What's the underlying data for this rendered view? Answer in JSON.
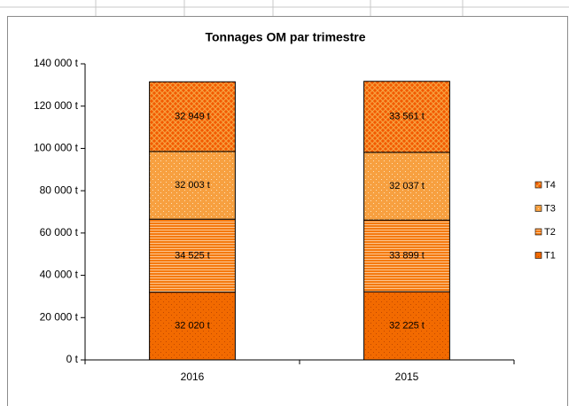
{
  "chart_data": {
    "type": "stacked-bar",
    "title": "Tonnages OM par trimestre",
    "categories": [
      "2016",
      "2015"
    ],
    "series": [
      {
        "name": "T1",
        "color": "#f26a00",
        "values": [
          32020,
          32225
        ],
        "value_labels": [
          "32 020 t",
          "32 225 t"
        ]
      },
      {
        "name": "T2",
        "color": "#f57a10",
        "values": [
          34525,
          33899
        ],
        "value_labels": [
          "34 525 t",
          "33 899 t"
        ]
      },
      {
        "name": "T3",
        "color": "#f7a040",
        "values": [
          32003,
          32037
        ],
        "value_labels": [
          "32 003 t",
          "32 037 t"
        ]
      },
      {
        "name": "T4",
        "color": "#f25a00",
        "values": [
          32949,
          33561
        ],
        "value_labels": [
          "32 949 t",
          "33 561 t"
        ]
      }
    ],
    "ylim": [
      0,
      140000
    ],
    "yticks": [
      {
        "value": 0,
        "label": "0 t"
      },
      {
        "value": 20000,
        "label": "20 000 t"
      },
      {
        "value": 40000,
        "label": "40 000 t"
      },
      {
        "value": 60000,
        "label": "60 000 t"
      },
      {
        "value": 80000,
        "label": "80 000 t"
      },
      {
        "value": 100000,
        "label": "100 000 t"
      },
      {
        "value": 120000,
        "label": "120 000 t"
      },
      {
        "value": 140000,
        "label": "140 000 t"
      }
    ],
    "legend": "right"
  }
}
